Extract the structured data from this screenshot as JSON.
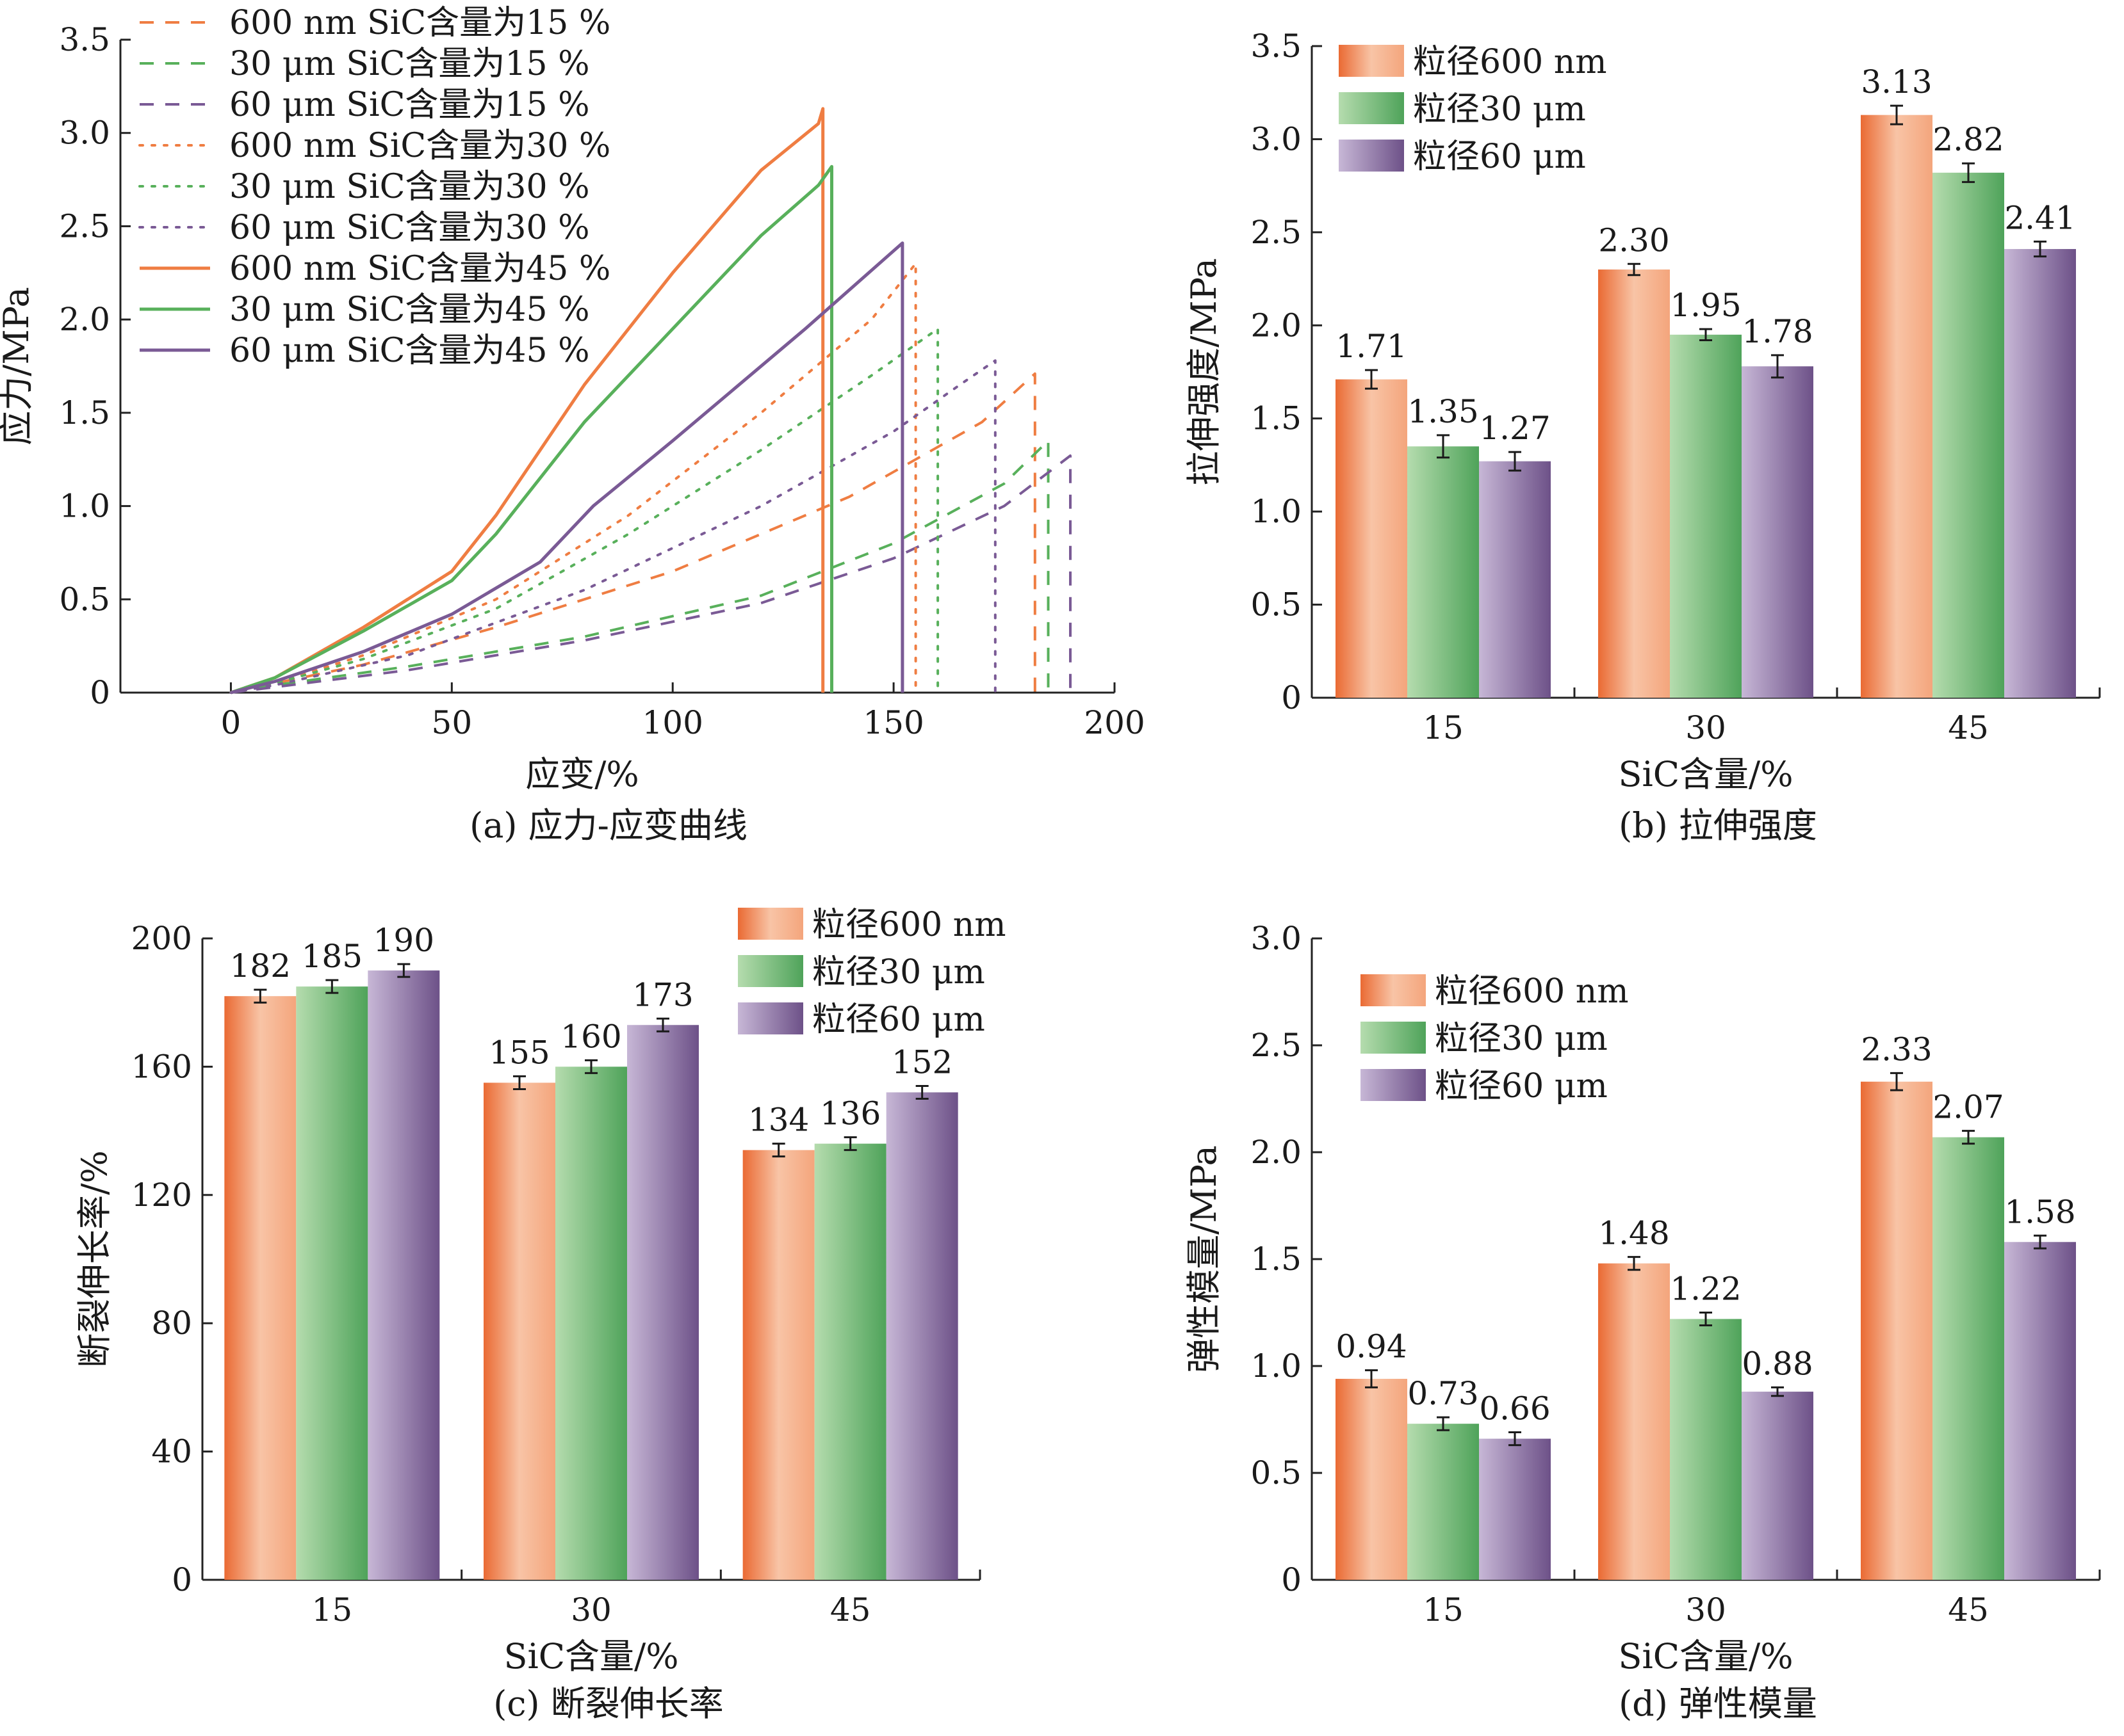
{
  "colors": {
    "orange": "#ef7d42",
    "green": "#58b05b",
    "purple": "#7a5a95",
    "bar_orange_dark": "#ea6a33",
    "bar_orange_light": "#f8c4a6",
    "bar_green_dark": "#4fa35a",
    "bar_green_light": "#b5dcae",
    "bar_purple_dark": "#6d5188",
    "bar_purple_light": "#c7b7d6",
    "axis": "#222222"
  },
  "chart_data": [
    {
      "id": "a",
      "type": "line",
      "caption": "(a) 应力-应变曲线",
      "xlabel": "应变/%",
      "ylabel": "应力/MPa",
      "xlim": [
        -25,
        200
      ],
      "ylim": [
        0,
        3.5
      ],
      "xticks": [
        0,
        50,
        100,
        150,
        200
      ],
      "yticks": [
        0,
        0.5,
        1.0,
        1.5,
        2.0,
        2.5,
        3.0,
        3.5
      ],
      "ytick_labels": [
        "0",
        "0.5",
        "1.0",
        "1.5",
        "2.0",
        "2.5",
        "3.0",
        "3.5"
      ],
      "legend_position": "top-left",
      "series": [
        {
          "name": "600 nm SiC含量为15 %",
          "color": "orange",
          "style": "dashed",
          "x": [
            0,
            10,
            30,
            60,
            100,
            140,
            170,
            182,
            182
          ],
          "y": [
            0,
            0.05,
            0.15,
            0.35,
            0.65,
            1.05,
            1.45,
            1.71,
            0
          ]
        },
        {
          "name": "30 μm SiC含量为15 %",
          "color": "green",
          "style": "dashed",
          "x": [
            0,
            10,
            40,
            80,
            120,
            150,
            175,
            185,
            185
          ],
          "y": [
            0,
            0.04,
            0.14,
            0.3,
            0.52,
            0.8,
            1.12,
            1.35,
            0
          ]
        },
        {
          "name": "60 μm SiC含量为15 %",
          "color": "purple",
          "style": "dashed",
          "x": [
            0,
            10,
            40,
            80,
            120,
            150,
            175,
            190,
            190
          ],
          "y": [
            0,
            0.03,
            0.12,
            0.28,
            0.48,
            0.72,
            1.0,
            1.27,
            0
          ]
        },
        {
          "name": "600 nm SiC含量为30 %",
          "color": "orange",
          "style": "dotted",
          "x": [
            0,
            10,
            30,
            60,
            90,
            120,
            145,
            155,
            155
          ],
          "y": [
            0,
            0.05,
            0.2,
            0.5,
            0.95,
            1.5,
            2.0,
            2.3,
            0
          ]
        },
        {
          "name": "30 μm SiC含量为30 %",
          "color": "green",
          "style": "dotted",
          "x": [
            0,
            10,
            30,
            60,
            90,
            120,
            145,
            160,
            160
          ],
          "y": [
            0,
            0.05,
            0.18,
            0.45,
            0.85,
            1.3,
            1.7,
            1.95,
            0
          ]
        },
        {
          "name": "60 μm SiC含量为30 %",
          "color": "purple",
          "style": "dotted",
          "x": [
            0,
            10,
            40,
            80,
            120,
            150,
            165,
            173,
            173
          ],
          "y": [
            0,
            0.04,
            0.2,
            0.55,
            1.0,
            1.4,
            1.65,
            1.78,
            0
          ]
        },
        {
          "name": "600 nm SiC含量为45 %",
          "color": "orange",
          "style": "solid",
          "x": [
            0,
            10,
            30,
            50,
            60,
            80,
            100,
            120,
            133,
            134,
            134
          ],
          "y": [
            0,
            0.08,
            0.35,
            0.65,
            0.95,
            1.65,
            2.25,
            2.8,
            3.05,
            3.13,
            0
          ]
        },
        {
          "name": "30 μm SiC含量为45 %",
          "color": "green",
          "style": "solid",
          "x": [
            0,
            10,
            30,
            50,
            60,
            80,
            100,
            120,
            133,
            136,
            136
          ],
          "y": [
            0,
            0.08,
            0.33,
            0.6,
            0.85,
            1.45,
            1.95,
            2.45,
            2.72,
            2.82,
            0
          ]
        },
        {
          "name": "60 μm SiC含量为45 %",
          "color": "purple",
          "style": "solid",
          "x": [
            0,
            10,
            30,
            50,
            70,
            82,
            100,
            130,
            152,
            152
          ],
          "y": [
            0,
            0.06,
            0.22,
            0.42,
            0.7,
            1.0,
            1.35,
            1.95,
            2.41,
            0
          ]
        }
      ]
    },
    {
      "id": "b",
      "type": "bar",
      "caption": "(b) 拉伸强度",
      "xlabel": "SiC含量/%",
      "ylabel": "拉伸强度/MPa",
      "categories": [
        "15",
        "30",
        "45"
      ],
      "ylim": [
        0,
        3.5
      ],
      "yticks": [
        0,
        0.5,
        1.0,
        1.5,
        2.0,
        2.5,
        3.0,
        3.5
      ],
      "ytick_labels": [
        "0",
        "0.5",
        "1.0",
        "1.5",
        "2.0",
        "2.5",
        "3.0",
        "3.5"
      ],
      "legend_position": "top-left",
      "series": [
        {
          "name": "粒径600 nm",
          "color": "orange",
          "values": [
            1.71,
            2.3,
            3.13
          ],
          "labels": [
            "1.71",
            "2.30",
            "3.13"
          ],
          "errors": [
            0.05,
            0.03,
            0.05
          ]
        },
        {
          "name": "粒径30 μm",
          "color": "green",
          "values": [
            1.35,
            1.95,
            2.82
          ],
          "labels": [
            "1.35",
            "1.95",
            "2.82"
          ],
          "errors": [
            0.06,
            0.03,
            0.05
          ]
        },
        {
          "name": "粒径60 μm",
          "color": "purple",
          "values": [
            1.27,
            1.78,
            2.41
          ],
          "labels": [
            "1.27",
            "1.78",
            "2.41"
          ],
          "errors": [
            0.05,
            0.06,
            0.04
          ]
        }
      ]
    },
    {
      "id": "c",
      "type": "bar",
      "caption": "(c) 断裂伸长率",
      "xlabel": "SiC含量/%",
      "ylabel": "断裂伸长率/%",
      "categories": [
        "15",
        "30",
        "45"
      ],
      "ylim": [
        0,
        200
      ],
      "yticks": [
        0,
        40,
        80,
        120,
        160,
        200
      ],
      "ytick_labels": [
        "0",
        "40",
        "80",
        "120",
        "160",
        "200"
      ],
      "legend_position": "top-right",
      "series": [
        {
          "name": "粒径600 nm",
          "color": "orange",
          "values": [
            182,
            155,
            134
          ],
          "labels": [
            "182",
            "155",
            "134"
          ],
          "errors": [
            2,
            2,
            2
          ]
        },
        {
          "name": "粒径30 μm",
          "color": "green",
          "values": [
            185,
            160,
            136
          ],
          "labels": [
            "185",
            "160",
            "136"
          ],
          "errors": [
            2,
            2,
            2
          ]
        },
        {
          "name": "粒径60 μm",
          "color": "purple",
          "values": [
            190,
            173,
            152
          ],
          "labels": [
            "190",
            "173",
            "152"
          ],
          "errors": [
            2,
            2,
            2
          ]
        }
      ]
    },
    {
      "id": "d",
      "type": "bar",
      "caption": "(d) 弹性模量",
      "xlabel": "SiC含量/%",
      "ylabel": "弹性模量/MPa",
      "categories": [
        "15",
        "30",
        "45"
      ],
      "ylim": [
        0,
        3.0
      ],
      "yticks": [
        0,
        0.5,
        1.0,
        1.5,
        2.0,
        2.5,
        3.0
      ],
      "ytick_labels": [
        "0",
        "0.5",
        "1.0",
        "1.5",
        "2.0",
        "2.5",
        "3.0"
      ],
      "legend_position": "top-left",
      "series": [
        {
          "name": "粒径600 nm",
          "color": "orange",
          "values": [
            0.94,
            1.48,
            2.33
          ],
          "labels": [
            "0.94",
            "1.48",
            "2.33"
          ],
          "errors": [
            0.04,
            0.03,
            0.04
          ]
        },
        {
          "name": "粒径30 μm",
          "color": "green",
          "values": [
            0.73,
            1.22,
            2.07
          ],
          "labels": [
            "0.73",
            "1.22",
            "2.07"
          ],
          "errors": [
            0.03,
            0.03,
            0.03
          ]
        },
        {
          "name": "粒径60 μm",
          "color": "purple",
          "values": [
            0.66,
            0.88,
            1.58
          ],
          "labels": [
            "0.66",
            "0.88",
            "1.58"
          ],
          "errors": [
            0.03,
            0.02,
            0.03
          ]
        }
      ]
    }
  ]
}
